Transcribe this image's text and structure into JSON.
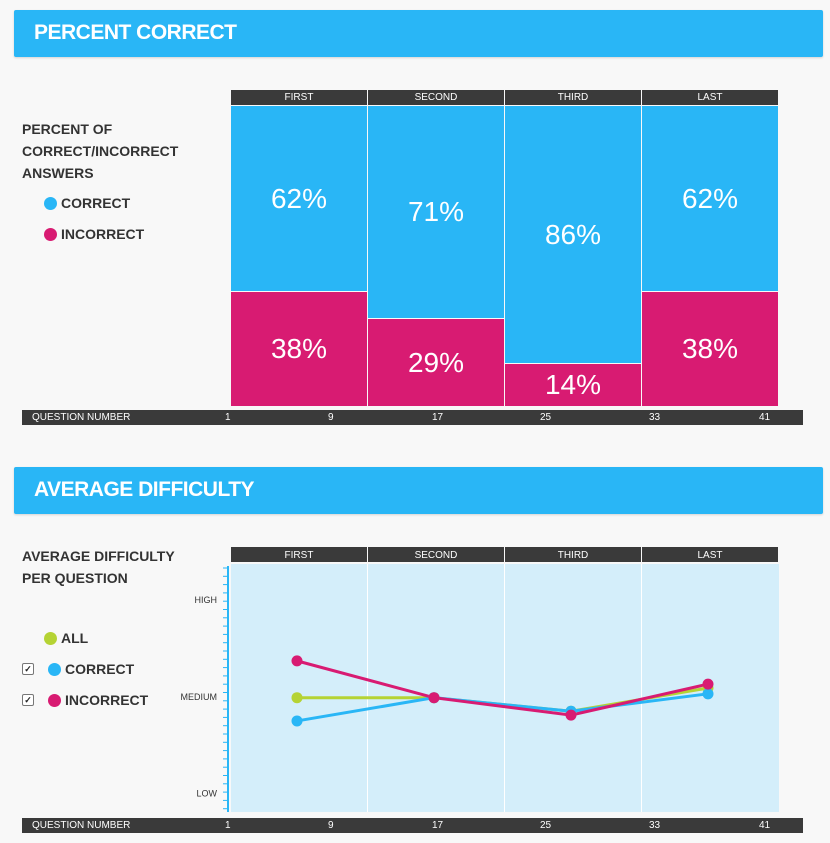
{
  "colors": {
    "banner": "#29b6f6",
    "correct": "#29b6f6",
    "incorrect": "#d81b72",
    "all": "#b5d334",
    "dark": "#3a3a3a"
  },
  "percent_section": {
    "banner_title": "PERCENT CORRECT",
    "label_lines": [
      "PERCENT OF",
      "CORRECT/INCORRECT",
      "ANSWERS"
    ],
    "legend": [
      {
        "name": "CORRECT",
        "color": "#29b6f6"
      },
      {
        "name": "INCORRECT",
        "color": "#d81b72"
      }
    ]
  },
  "difficulty_section": {
    "banner_title": "AVERAGE DIFFICULTY",
    "label_lines": [
      "AVERAGE DIFFICULTY",
      "PER QUESTION"
    ],
    "legend": [
      {
        "name": "ALL",
        "color": "#b5d334",
        "checkbox": false
      },
      {
        "name": "CORRECT",
        "color": "#29b6f6",
        "checkbox": true,
        "check_mark": "✓"
      },
      {
        "name": "INCORRECT",
        "color": "#d81b72",
        "checkbox": true,
        "check_mark": "✓"
      }
    ]
  },
  "question_axis": {
    "label": "QUESTION NUMBER",
    "ticks": [
      "1",
      "9",
      "17",
      "25",
      "33",
      "41"
    ]
  },
  "chart_data": [
    {
      "type": "bar",
      "title": "PERCENT CORRECT",
      "categories": [
        "FIRST",
        "SECOND",
        "THIRD",
        "LAST"
      ],
      "series": [
        {
          "name": "CORRECT",
          "values": [
            62,
            71,
            86,
            62
          ]
        },
        {
          "name": "INCORRECT",
          "values": [
            38,
            29,
            14,
            38
          ]
        }
      ],
      "labels": {
        "CORRECT": [
          "62%",
          "71%",
          "86%",
          "62%"
        ],
        "INCORRECT": [
          "38%",
          "29%",
          "14%",
          "38%"
        ]
      },
      "stacked": true,
      "ylim": [
        0,
        100
      ],
      "xlabel": "QUESTION NUMBER"
    },
    {
      "type": "line",
      "title": "AVERAGE DIFFICULTY",
      "categories": [
        "FIRST",
        "SECOND",
        "THIRD",
        "LAST"
      ],
      "y_tick_labels": [
        "HIGH",
        "MEDIUM",
        "LOW"
      ],
      "y_ticks": [
        1.0,
        0.5,
        0.0
      ],
      "ylim": [
        -0.1,
        1.18
      ],
      "series": [
        {
          "name": "ALL",
          "values": [
            0.49,
            0.49,
            0.42,
            0.54
          ]
        },
        {
          "name": "CORRECT",
          "values": [
            0.37,
            0.49,
            0.42,
            0.51
          ]
        },
        {
          "name": "INCORRECT",
          "values": [
            0.68,
            0.49,
            0.4,
            0.56
          ]
        }
      ],
      "xlabel": "QUESTION NUMBER"
    }
  ]
}
